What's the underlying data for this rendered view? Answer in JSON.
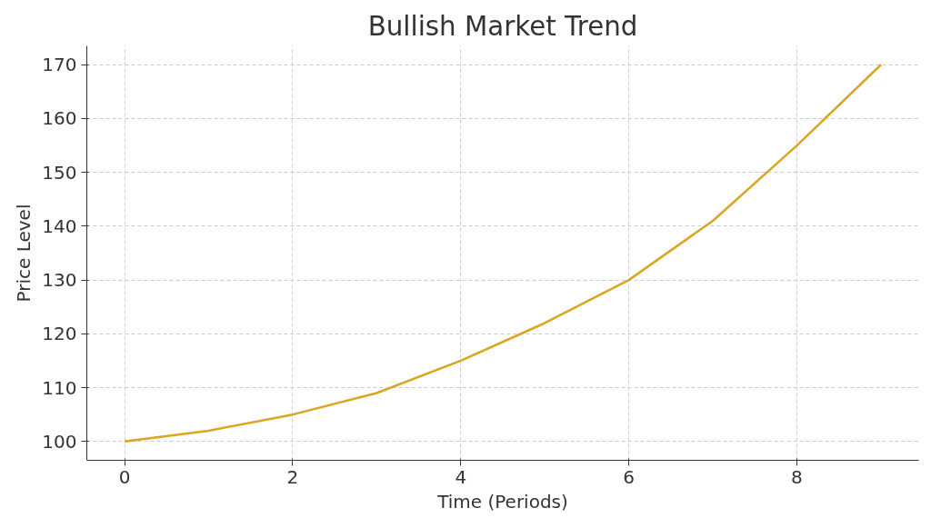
{
  "chart_data": {
    "type": "line",
    "title": "Bullish Market Trend",
    "xlabel": "Time (Periods)",
    "ylabel": "Price Level",
    "x": [
      0,
      1,
      2,
      3,
      4,
      5,
      6,
      7,
      8,
      9
    ],
    "series": [
      {
        "color": "#daa520",
        "values": [
          100,
          102,
          105,
          109,
          115,
          122,
          130,
          141,
          155,
          170
        ]
      }
    ],
    "xlim": [
      -0.45,
      9.45
    ],
    "ylim": [
      96.5,
      173.5
    ],
    "xticks": [
      0,
      2,
      4,
      6,
      8
    ],
    "yticks": [
      100,
      110,
      120,
      130,
      140,
      150,
      160,
      170
    ],
    "grid": true,
    "line_style": "solid",
    "marker": "none"
  }
}
